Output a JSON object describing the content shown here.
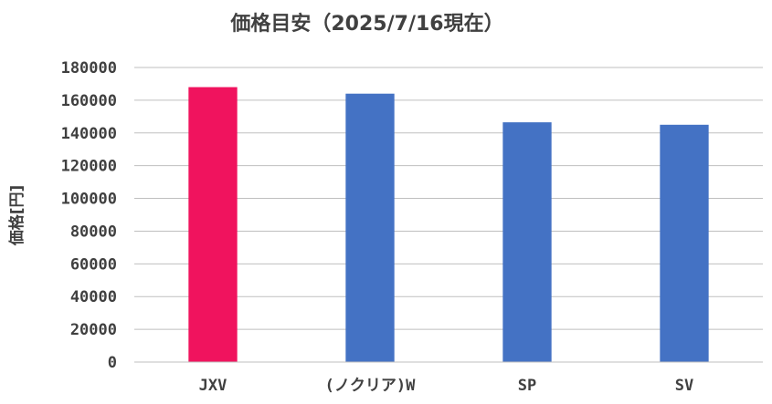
{
  "chart_data": {
    "type": "bar",
    "title": "価格目安（2025/7/16現在）",
    "xlabel": "",
    "ylabel": "価格[円]",
    "categories": [
      "JXV",
      "(ノクリア)W",
      "SP",
      "SV"
    ],
    "values": [
      168000,
      164000,
      146500,
      145000
    ],
    "ylim": [
      0,
      180000
    ],
    "yticks": [
      "0",
      "20000",
      "40000",
      "60000",
      "80000",
      "100000",
      "120000",
      "140000",
      "160000",
      "180000"
    ],
    "grid": true,
    "legend": "none",
    "colors": [
      "#f0135e",
      "#4472c4",
      "#4472c4",
      "#4472c4"
    ]
  }
}
